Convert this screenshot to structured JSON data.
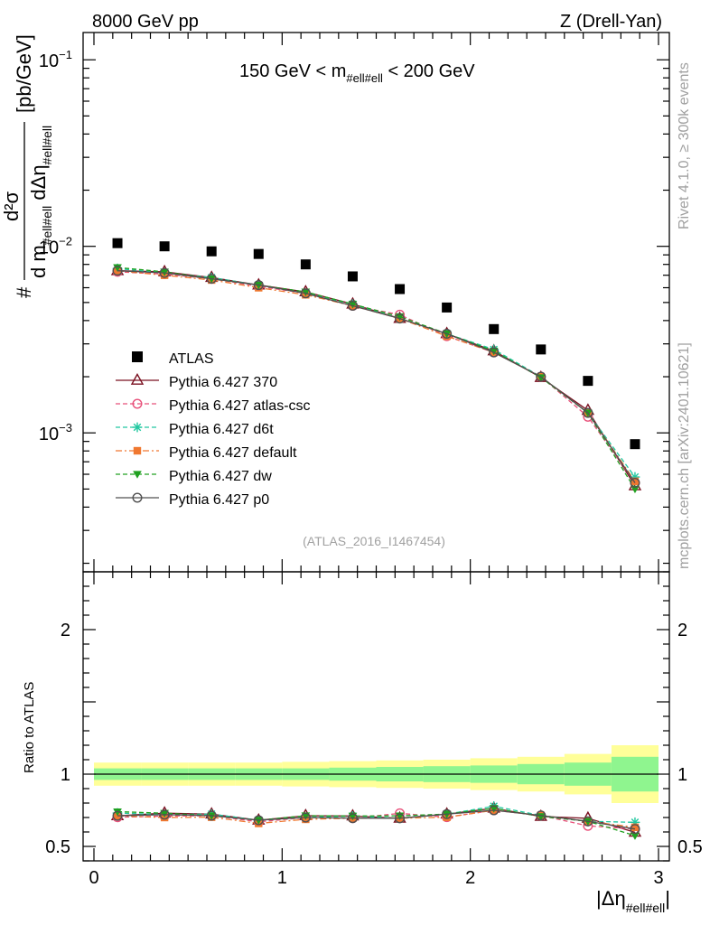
{
  "header": {
    "left": "8000 GeV pp",
    "right": "Z (Drell-Yan)",
    "cut_label": "150 GeV < m",
    "cut_sub": "#ell#ell",
    "cut_right": " < 200 GeV",
    "watermark": "(ATLAS_2016_I1467454)"
  },
  "side_labels": {
    "rivet": "Rivet 4.1.0, ≥ 300k events",
    "mcplots": "mcplots.cern.ch [arXiv:2401.10621]"
  },
  "y_label_top": {
    "hash": "#",
    "numerator": "d²σ",
    "denom_main": "d m",
    "denom_sub1": "#ell#ell",
    "denom_mid": " dΔη",
    "denom_sub2": "#ell#ell",
    "units": "[pb/GeV]"
  },
  "y_label_bottom": "Ratio to ATLAS",
  "x_label": {
    "main": "|Δη",
    "sub": "#ell#ell",
    "close": "|"
  },
  "top_ticks": [
    {
      "label": "10",
      "exp": "−1",
      "value": 0.1
    },
    {
      "label": "10",
      "exp": "−2",
      "value": 0.01
    },
    {
      "label": "10",
      "exp": "−3",
      "value": 0.001
    }
  ],
  "ratio_ticks": [
    {
      "label": "0.5",
      "value": 0.5
    },
    {
      "label": "1",
      "value": 1
    },
    {
      "label": "2",
      "value": 2
    }
  ],
  "x_ticks": [
    {
      "label": "0",
      "value": 0
    },
    {
      "label": "1",
      "value": 1
    },
    {
      "label": "2",
      "value": 2
    },
    {
      "label": "3",
      "value": 3
    }
  ],
  "chart_data": {
    "type": "scatter",
    "title": "150 GeV < m_ll < 200 GeV",
    "xlabel": "|Δη_ll|",
    "ylabel": "d²σ / d m_ll dΔη_ll [pb/GeV]",
    "xlim": [
      0,
      3
    ],
    "ylim_top": [
      0.00018,
      0.14
    ],
    "ylim_ratio": [
      0.4,
      2.4
    ],
    "x": [
      0.125,
      0.375,
      0.625,
      0.875,
      1.125,
      1.375,
      1.625,
      1.875,
      2.125,
      2.375,
      2.625,
      2.875
    ],
    "bins": [
      [
        0,
        0.25
      ],
      [
        0.25,
        0.5
      ],
      [
        0.5,
        0.75
      ],
      [
        0.75,
        1.0
      ],
      [
        1.0,
        1.25
      ],
      [
        1.25,
        1.5
      ],
      [
        1.5,
        1.75
      ],
      [
        1.75,
        2.0
      ],
      [
        2.0,
        2.25
      ],
      [
        2.25,
        2.5
      ],
      [
        2.5,
        2.75
      ],
      [
        2.75,
        3.0
      ]
    ],
    "reference": {
      "name": "ATLAS",
      "color": "#000000",
      "values": [
        0.0104,
        0.01,
        0.0094,
        0.0091,
        0.008,
        0.0069,
        0.0059,
        0.0047,
        0.0036,
        0.0028,
        0.0019,
        0.00087
      ],
      "band_inner": [
        0.04,
        0.04,
        0.04,
        0.04,
        0.04,
        0.045,
        0.05,
        0.055,
        0.06,
        0.07,
        0.08,
        0.12
      ],
      "band_outer": [
        0.08,
        0.08,
        0.08,
        0.08,
        0.085,
        0.09,
        0.095,
        0.1,
        0.11,
        0.12,
        0.14,
        0.2
      ],
      "band_inner_color": "#8ff58f",
      "band_outer_color": "#ffff99"
    },
    "series": [
      {
        "name": "Pythia 6.427 370",
        "color": "#7a1020",
        "marker": "triangle-open",
        "dash": "solid",
        "values": [
          0.0074,
          0.0073,
          0.0068,
          0.0062,
          0.0057,
          0.0049,
          0.0041,
          0.0034,
          0.00275,
          0.00198,
          0.00132,
          0.00052
        ]
      },
      {
        "name": "Pythia 6.427 atlas-csc",
        "color": "#e8507a",
        "marker": "circle-open",
        "dash": "dashed",
        "values": [
          0.0073,
          0.0071,
          0.0067,
          0.0061,
          0.0056,
          0.0048,
          0.0043,
          0.0033,
          0.0027,
          0.002,
          0.00122,
          0.00054
        ]
      },
      {
        "name": "Pythia 6.427 d6t",
        "color": "#20c8a0",
        "marker": "star",
        "dash": "dashed",
        "values": [
          0.0076,
          0.0072,
          0.0068,
          0.0062,
          0.0056,
          0.0049,
          0.0041,
          0.0034,
          0.0028,
          0.002,
          0.00128,
          0.00058
        ]
      },
      {
        "name": "Pythia 6.427 default",
        "color": "#f07830",
        "marker": "square",
        "dash": "dashdot",
        "values": [
          0.0074,
          0.007,
          0.0066,
          0.006,
          0.0055,
          0.0048,
          0.0041,
          0.0033,
          0.0027,
          0.002,
          0.00128,
          0.00055
        ]
      },
      {
        "name": "Pythia 6.427 dw",
        "color": "#20a020",
        "marker": "triangle-down",
        "dash": "dashed",
        "values": [
          0.0077,
          0.0073,
          0.0067,
          0.0062,
          0.0057,
          0.0049,
          0.0042,
          0.0034,
          0.00275,
          0.00198,
          0.00128,
          0.0005
        ]
      },
      {
        "name": "Pythia 6.427 p0",
        "color": "#505050",
        "marker": "circle-open",
        "dash": "solid",
        "values": [
          0.0074,
          0.0072,
          0.0067,
          0.0062,
          0.0056,
          0.0048,
          0.0041,
          0.0034,
          0.0027,
          0.002,
          0.00128,
          0.00054
        ]
      }
    ]
  }
}
